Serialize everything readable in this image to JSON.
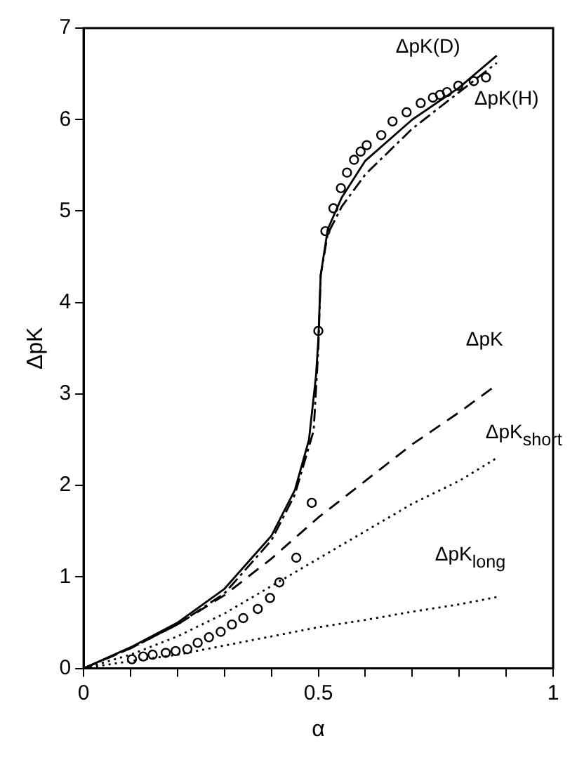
{
  "chart_data": {
    "type": "line",
    "xlabel": "α",
    "ylabel": "ΔpK",
    "xlim": [
      0,
      1
    ],
    "ylim": [
      0,
      7
    ],
    "xticks": [
      0,
      {
        "value": 0.1,
        "label": null
      },
      {
        "value": 0.2,
        "label": null
      },
      {
        "value": 0.3,
        "label": null
      },
      {
        "value": 0.4,
        "label": null
      },
      0.5,
      {
        "value": 0.6,
        "label": null
      },
      {
        "value": 0.7,
        "label": null
      },
      {
        "value": 0.8,
        "label": null
      },
      {
        "value": 0.9,
        "label": null
      },
      1
    ],
    "yticks": [
      0,
      1,
      2,
      3,
      4,
      5,
      6,
      7
    ],
    "grid": false,
    "legend": false,
    "series": [
      {
        "name": "ΔpK(D)",
        "line_style": "solid",
        "color": "#000000",
        "x": [
          0,
          0.1,
          0.2,
          0.3,
          0.4,
          0.45,
          0.48,
          0.495,
          0.5,
          0.505,
          0.52,
          0.55,
          0.6,
          0.7,
          0.8,
          0.88
        ],
        "values": [
          0,
          0.23,
          0.5,
          0.87,
          1.45,
          1.95,
          2.5,
          3.2,
          3.6,
          4.3,
          4.8,
          5.15,
          5.55,
          6.0,
          6.35,
          6.7
        ]
      },
      {
        "name": "ΔpK(H)",
        "line_style": "dashdot",
        "color": "#000000",
        "x": [
          0,
          0.1,
          0.2,
          0.3,
          0.4,
          0.45,
          0.49,
          0.5,
          0.505,
          0.52,
          0.55,
          0.6,
          0.7,
          0.8,
          0.88
        ],
        "values": [
          0,
          0.22,
          0.48,
          0.82,
          1.4,
          1.9,
          2.6,
          3.5,
          4.3,
          4.75,
          5.05,
          5.4,
          5.9,
          6.3,
          6.62
        ]
      },
      {
        "name": "ΔpK",
        "line_style": "dashed",
        "color": "#000000",
        "x": [
          0,
          0.1,
          0.2,
          0.3,
          0.4,
          0.5,
          0.6,
          0.7,
          0.8,
          0.88
        ],
        "values": [
          0,
          0.22,
          0.48,
          0.8,
          1.2,
          1.65,
          2.05,
          2.45,
          2.8,
          3.1
        ]
      },
      {
        "name": "ΔpK$_{short}$",
        "line_style": "dotted",
        "color": "#000000",
        "x": [
          0,
          0.1,
          0.2,
          0.3,
          0.4,
          0.5,
          0.6,
          0.7,
          0.8,
          0.88
        ],
        "values": [
          0,
          0.15,
          0.35,
          0.6,
          0.9,
          1.2,
          1.5,
          1.8,
          2.05,
          2.3
        ]
      },
      {
        "name": "ΔpK$_{long}$",
        "line_style": "dotted",
        "color": "#000000",
        "x": [
          0,
          0.1,
          0.2,
          0.3,
          0.4,
          0.5,
          0.6,
          0.7,
          0.8,
          0.88
        ],
        "values": [
          0,
          0.08,
          0.15,
          0.25,
          0.35,
          0.45,
          0.53,
          0.62,
          0.7,
          0.78
        ]
      },
      {
        "type": "scatter",
        "marker": "circle",
        "color": "#000000",
        "x": [
          0.103,
          0.127,
          0.147,
          0.175,
          0.196,
          0.221,
          0.243,
          0.267,
          0.292,
          0.316,
          0.34,
          0.371,
          0.397,
          0.417,
          0.453,
          0.486,
          0.5,
          0.515,
          0.532,
          0.548,
          0.561,
          0.576,
          0.59,
          0.603,
          0.634,
          0.658,
          0.688,
          0.718,
          0.744,
          0.759,
          0.774,
          0.798,
          0.831,
          0.857
        ],
        "values": [
          0.1,
          0.13,
          0.15,
          0.17,
          0.19,
          0.21,
          0.28,
          0.34,
          0.4,
          0.48,
          0.55,
          0.65,
          0.77,
          0.94,
          1.21,
          1.81,
          3.69,
          4.78,
          5.03,
          5.25,
          5.42,
          5.56,
          5.65,
          5.72,
          5.83,
          5.98,
          6.08,
          6.18,
          6.24,
          6.27,
          6.3,
          6.37,
          6.42,
          6.46
        ]
      }
    ]
  }
}
